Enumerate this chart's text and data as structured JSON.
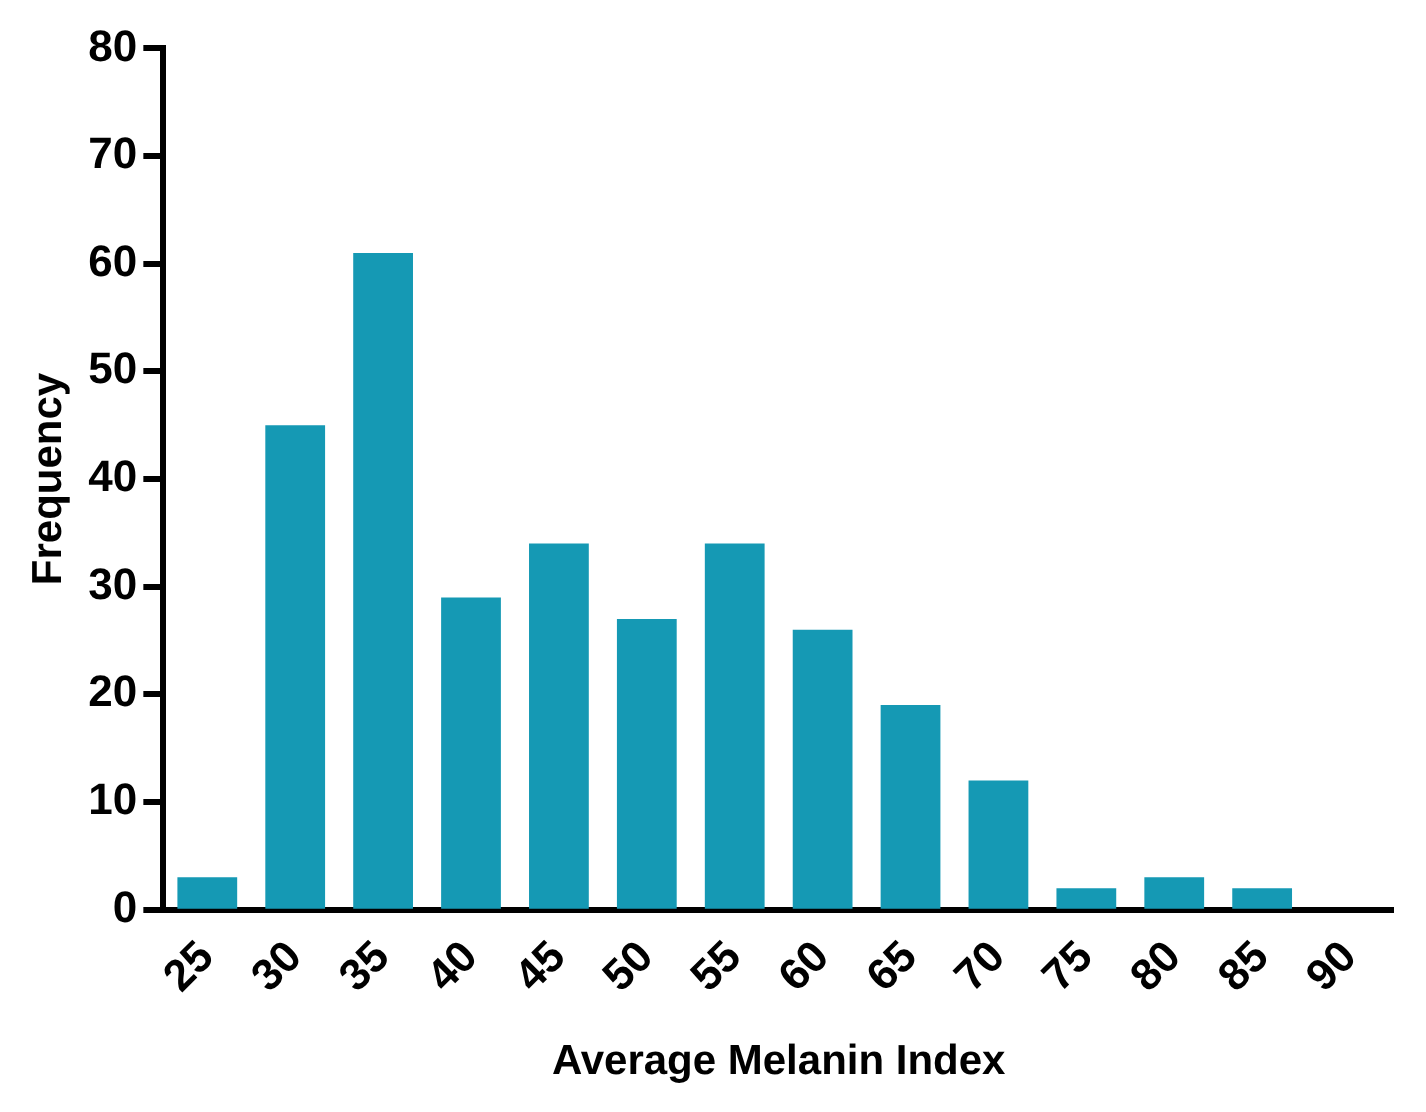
{
  "chart_data": {
    "type": "bar",
    "xlabel": "Average Melanin Index",
    "ylabel": "Frequency",
    "categories": [
      "25",
      "30",
      "35",
      "40",
      "45",
      "50",
      "55",
      "60",
      "65",
      "70",
      "75",
      "80",
      "85",
      "90"
    ],
    "values": [
      3,
      45,
      61,
      29,
      34,
      27,
      34,
      26,
      19,
      12,
      2,
      3,
      2,
      0
    ],
    "color": "#1599b4",
    "ylim": [
      0,
      80
    ],
    "yticks": [
      0,
      10,
      20,
      30,
      40,
      50,
      60,
      70,
      80
    ],
    "grid": false,
    "legend": false
  }
}
